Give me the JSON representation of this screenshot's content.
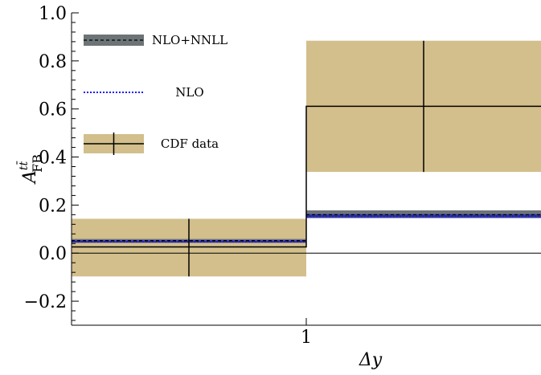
{
  "chart_data": {
    "type": "line",
    "xlabel": "Δy",
    "ylabel": {
      "base": "A",
      "superscript": "tt̄",
      "subscript": "FB"
    },
    "xlim": [
      0,
      2
    ],
    "ylim": [
      -0.3,
      1.0
    ],
    "x_ticks": [
      {
        "value": 1,
        "label": "1"
      }
    ],
    "y_ticks": [
      {
        "value": -0.2,
        "label": "−0.2"
      },
      {
        "value": 0.0,
        "label": "0.0"
      },
      {
        "value": 0.2,
        "label": "0.2"
      },
      {
        "value": 0.4,
        "label": "0.4"
      },
      {
        "value": 0.6,
        "label": "0.6"
      },
      {
        "value": 0.8,
        "label": "0.8"
      },
      {
        "value": 1.0,
        "label": "1.0"
      }
    ],
    "zero_line": 0.0,
    "bins": [
      {
        "x_low": 0,
        "x_high": 1
      },
      {
        "x_low": 1,
        "x_high": 2
      }
    ],
    "series": [
      {
        "name": "NLO+NNLL",
        "style": "dashed",
        "line_color": "#000000",
        "band_color": "#6d7478",
        "values": [
          0.052,
          0.16
        ],
        "band": [
          [
            0.045,
            0.059
          ],
          [
            0.148,
            0.178
          ]
        ]
      },
      {
        "name": "NLO",
        "style": "dotted",
        "line_color": "#1a1aff",
        "band_color": "#2a2f8a",
        "values": [
          0.048,
          0.154
        ],
        "band": [
          [
            0.043,
            0.053
          ],
          [
            0.146,
            0.162
          ]
        ]
      },
      {
        "name": "CDF data",
        "style": "data",
        "line_color": "#000000",
        "band_color": "#d3bf8c",
        "values": [
          0.026,
          0.611
        ],
        "band": [
          [
            -0.097,
            0.143
          ],
          [
            0.338,
            0.884
          ]
        ],
        "x_centers": [
          0.5,
          1.5
        ]
      }
    ],
    "legend": [
      {
        "label": "NLO+NNLL",
        "kind": "band-dashed"
      },
      {
        "label": "NLO",
        "kind": "dotted"
      },
      {
        "label": "CDF data",
        "kind": "data"
      }
    ],
    "legend_position": "top-left",
    "grid": false,
    "colors": {
      "cdf_band": "#d3bf8c",
      "nnll_band": "#6d7478",
      "nlo_line": "#1a1aff"
    }
  }
}
